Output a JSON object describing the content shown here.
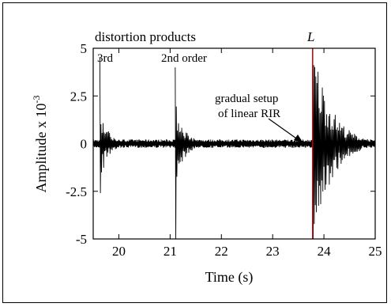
{
  "chart_data": {
    "type": "line",
    "title": "",
    "xlabel": "Time (s)",
    "ylabel_main": "Amplitude x 10",
    "ylabel_exp": "-3",
    "xlim": [
      19.5,
      25
    ],
    "ylim": [
      -5,
      5
    ],
    "xticks": [
      "20",
      "21",
      "22",
      "23",
      "24",
      "25"
    ],
    "xtick_values": [
      20,
      21,
      22,
      23,
      24,
      25
    ],
    "yticks": [
      "5",
      "2.5",
      "0",
      "-2.5",
      "-5"
    ],
    "ytick_values": [
      5,
      2.5,
      0,
      -2.5,
      -5
    ],
    "grid": false,
    "colors": {
      "signal": "#000000",
      "marker": "#c00000",
      "frame": "#000000"
    },
    "noise_floor": 0.22,
    "bursts": [
      {
        "label": "3rd",
        "t0": 19.63,
        "peak_pos": 4.5,
        "peak_neg": -2.6,
        "decay_s": 0.16,
        "duration_s": 0.45
      },
      {
        "label": "2nd order",
        "t0": 21.1,
        "peak_pos": 4.0,
        "peak_neg": -5.0,
        "decay_s": 0.18,
        "duration_s": 0.55
      },
      {
        "label": "L",
        "t0": 23.78,
        "peak_pos": 5.0,
        "peak_neg": -5.0,
        "decay_s": 0.35,
        "duration_s": 1.1
      }
    ],
    "marker_line_x": 23.78,
    "annotations": {
      "title_text": "distortion products",
      "third": "3rd",
      "second": "2nd order",
      "linear": "L",
      "setup_line1": "gradual setup",
      "setup_line2": "of linear RIR"
    }
  }
}
